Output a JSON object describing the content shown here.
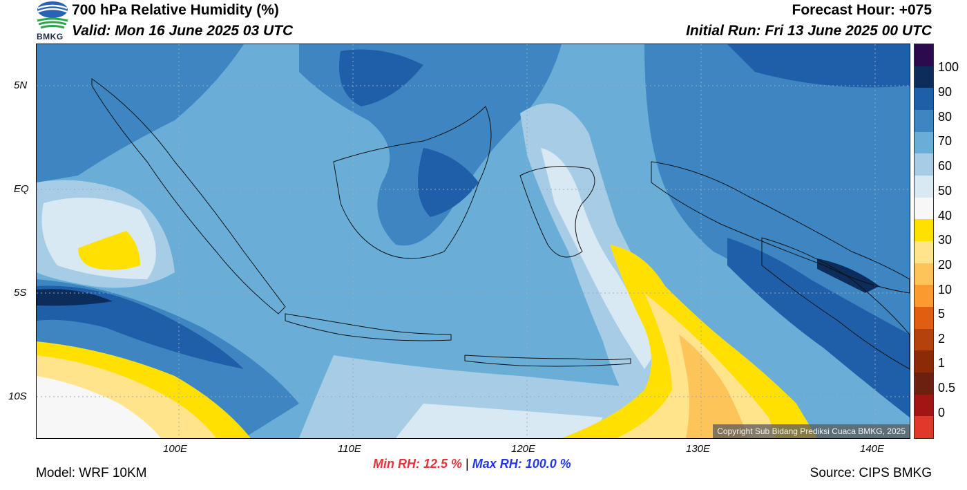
{
  "header": {
    "title": "700 hPa Relative Humidity (%)",
    "valid": "Valid: Mon 16 June 2025 03 UTC",
    "forecast_hour": "Forecast Hour: +075",
    "initial_run": "Initial Run: Fri 13 June 2025 00 UTC",
    "logo_text": "BMKG"
  },
  "map": {
    "lat_ticks": [
      "5N",
      "EQ",
      "5S",
      "10S"
    ],
    "lon_ticks": [
      "100E",
      "110E",
      "120E",
      "130E",
      "140E"
    ],
    "copyright": "Copyright Sub Bidang Prediksi Cuaca BMKG, 2025"
  },
  "colorbar": {
    "labels": [
      "100",
      "90",
      "80",
      "70",
      "60",
      "50",
      "40",
      "30",
      "20",
      "10",
      "5",
      "2",
      "1",
      "0.5",
      "0"
    ],
    "colors": [
      "#2b0a4d",
      "#0c2d5c",
      "#1f5ea8",
      "#3d86c2",
      "#6aaed8",
      "#a7cde6",
      "#d9e9f3",
      "#f7f7f7",
      "#ffe000",
      "#ffe48c",
      "#fdc45a",
      "#fb9a2e",
      "#e15e10",
      "#b5410c",
      "#8c2a08",
      "#6b2010",
      "#a31414",
      "#e0392c"
    ]
  },
  "stats": {
    "min": "Min RH:  12.5 %",
    "separator": "|",
    "max": "Max RH: 100.0 %"
  },
  "footer": {
    "model": "Model: WRF 10KM",
    "source": "Source: CIPS BMKG"
  }
}
